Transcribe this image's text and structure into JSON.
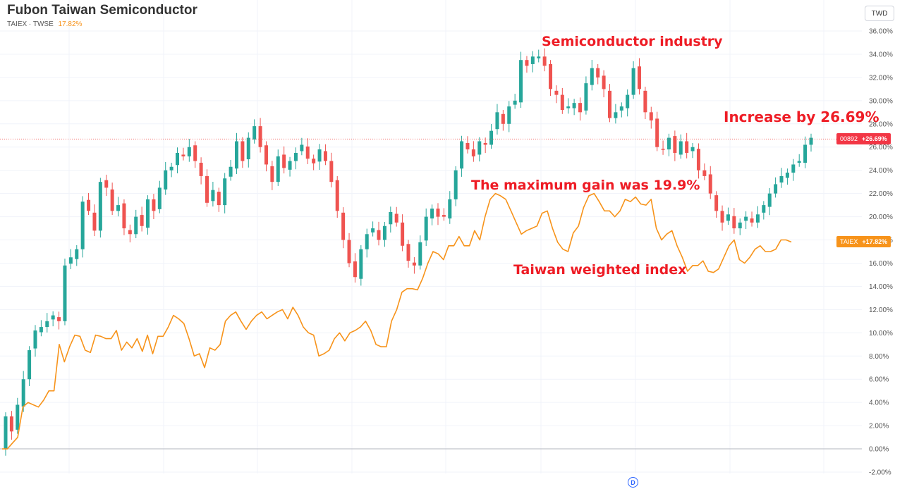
{
  "header": {
    "title": "Fubon Taiwan Semiconductor",
    "subtitle": "TAIEX · TWSE",
    "subtitle_change": "17.82%",
    "currency_button": "TWD"
  },
  "annotations": {
    "semiconductor": "Semiconductor industry",
    "increase": "Increase by 26.69%",
    "max_gain": "The maximum gain was 19.9%",
    "taiex": "Taiwan weighted index"
  },
  "badges": {
    "main": {
      "symbol": "00892",
      "value": "+26.69%"
    },
    "taiex": {
      "symbol": "TAIEX",
      "value": "+17.82%"
    }
  },
  "event_marker": "D",
  "colors": {
    "up": "#26a69a",
    "down": "#ef5350",
    "taiex_line": "#f7931a",
    "annotation": "#ee1c25",
    "badge_main": "#f23645",
    "badge_taiex": "#f7931a"
  },
  "chart_data": {
    "type": "line",
    "ylim": [
      -2,
      36
    ],
    "y_ticks": [
      "36.00%",
      "34.00%",
      "32.00%",
      "30.00%",
      "28.00%",
      "26.00%",
      "24.00%",
      "22.00%",
      "20.00%",
      "18.00%",
      "16.00%",
      "14.00%",
      "12.00%",
      "10.00%",
      "8.00%",
      "6.00%",
      "4.00%",
      "2.00%",
      "0.00%",
      "-2.00%"
    ],
    "y_tick_values": [
      36,
      34,
      32,
      30,
      28,
      26,
      24,
      22,
      20,
      18,
      16,
      14,
      12,
      10,
      8,
      6,
      4,
      2,
      0,
      -2
    ],
    "series": [
      {
        "name": "00892",
        "style": "candlestick",
        "closes": [
          2.8,
          1.5,
          3.8,
          6.0,
          8.5,
          10.2,
          10.5,
          11.0,
          11.5,
          11.0,
          15.8,
          16.5,
          17.2,
          21.3,
          20.5,
          18.8,
          23.0,
          22.5,
          20.5,
          21.0,
          19.0,
          18.5,
          20.0,
          19.2,
          21.5,
          20.5,
          22.5,
          24.0,
          24.3,
          25.5,
          25.2,
          26.0,
          24.8,
          23.5,
          21.2,
          22.3,
          21.0,
          23.3,
          24.3,
          26.5,
          24.8,
          26.8,
          27.8,
          26.0,
          24.5,
          23.0,
          25.2,
          24.2,
          24.8,
          25.5,
          26.2,
          25.0,
          24.6,
          25.8,
          24.8,
          23.0,
          20.5,
          18.0,
          16.0,
          14.8,
          17.2,
          18.5,
          19.0,
          18.0,
          19.2,
          20.4,
          19.5,
          17.5,
          16.2,
          15.8,
          17.8,
          20.0,
          20.7,
          20.0,
          20.0,
          21.5,
          24.0,
          26.5,
          25.8,
          25.2,
          26.5,
          26.2,
          27.4,
          29.0,
          28.0,
          29.5,
          30.0,
          33.5,
          33.0,
          33.8,
          33.8,
          33.0,
          31.0,
          30.5,
          29.2,
          29.5,
          29.8,
          29.0,
          31.5,
          32.8,
          32.0,
          31.0,
          28.5,
          29.0,
          29.5,
          30.5,
          32.8,
          31.0,
          29.0,
          28.3,
          26.0,
          25.8,
          26.8,
          25.5,
          26.5,
          25.5,
          26.0,
          24.0,
          23.5,
          22.0,
          20.5,
          19.5,
          20.2,
          19.0,
          19.5,
          20.0,
          19.5,
          20.2,
          21.0,
          22.0,
          22.8,
          23.5,
          23.8,
          24.5,
          24.8,
          26.2,
          26.8
        ],
        "last": 26.69
      },
      {
        "name": "TAIEX",
        "style": "line",
        "values": [
          0,
          0,
          0.5,
          1.0,
          3.6,
          4.0,
          3.8,
          3.6,
          4.2,
          5.0,
          5.0,
          9.0,
          7.5,
          8.8,
          9.8,
          9.7,
          8.5,
          8.3,
          9.8,
          9.7,
          9.5,
          9.5,
          10.2,
          8.5,
          9.2,
          8.7,
          9.5,
          8.4,
          9.8,
          8.2,
          9.7,
          9.7,
          10.5,
          11.5,
          11.2,
          10.8,
          9.5,
          8.0,
          8.2,
          7.0,
          8.7,
          8.5,
          9.0,
          11.0,
          11.5,
          11.8,
          11.0,
          10.3,
          11.0,
          11.5,
          11.8,
          11.2,
          11.5,
          11.8,
          12.0,
          11.2,
          12.2,
          11.5,
          10.5,
          10.0,
          9.8,
          8.0,
          8.2,
          8.5,
          9.5,
          10.0,
          9.3,
          10.0,
          10.2,
          10.5,
          11.0,
          10.2,
          9.0,
          8.8,
          8.8,
          11.0,
          12.0,
          13.5,
          13.8,
          13.8,
          13.7,
          14.7,
          16.0,
          17.0,
          16.8,
          16.3,
          17.5,
          17.5,
          18.3,
          17.5,
          17.5,
          18.8,
          18.0,
          20.0,
          21.5,
          22.0,
          21.8,
          21.5,
          20.5,
          19.5,
          18.5,
          18.8,
          19.0,
          19.2,
          20.3,
          20.5,
          19.0,
          17.8,
          17.2,
          17.0,
          18.6,
          19.2,
          20.8,
          21.8,
          22.0,
          21.3,
          20.5,
          20.5,
          20.0,
          20.5,
          21.5,
          21.3,
          21.7,
          21.1,
          21.0,
          21.5,
          19.0,
          18.0,
          18.5,
          18.8,
          17.5,
          16.5,
          15.3,
          15.8,
          15.8,
          16.2,
          15.3,
          15.2,
          15.5,
          16.5,
          17.5,
          18.0,
          16.3,
          16.0,
          16.5,
          17.2,
          17.5,
          17.0,
          17.0,
          17.2,
          18.0,
          18.0,
          17.82
        ],
        "last": 17.82
      }
    ]
  }
}
